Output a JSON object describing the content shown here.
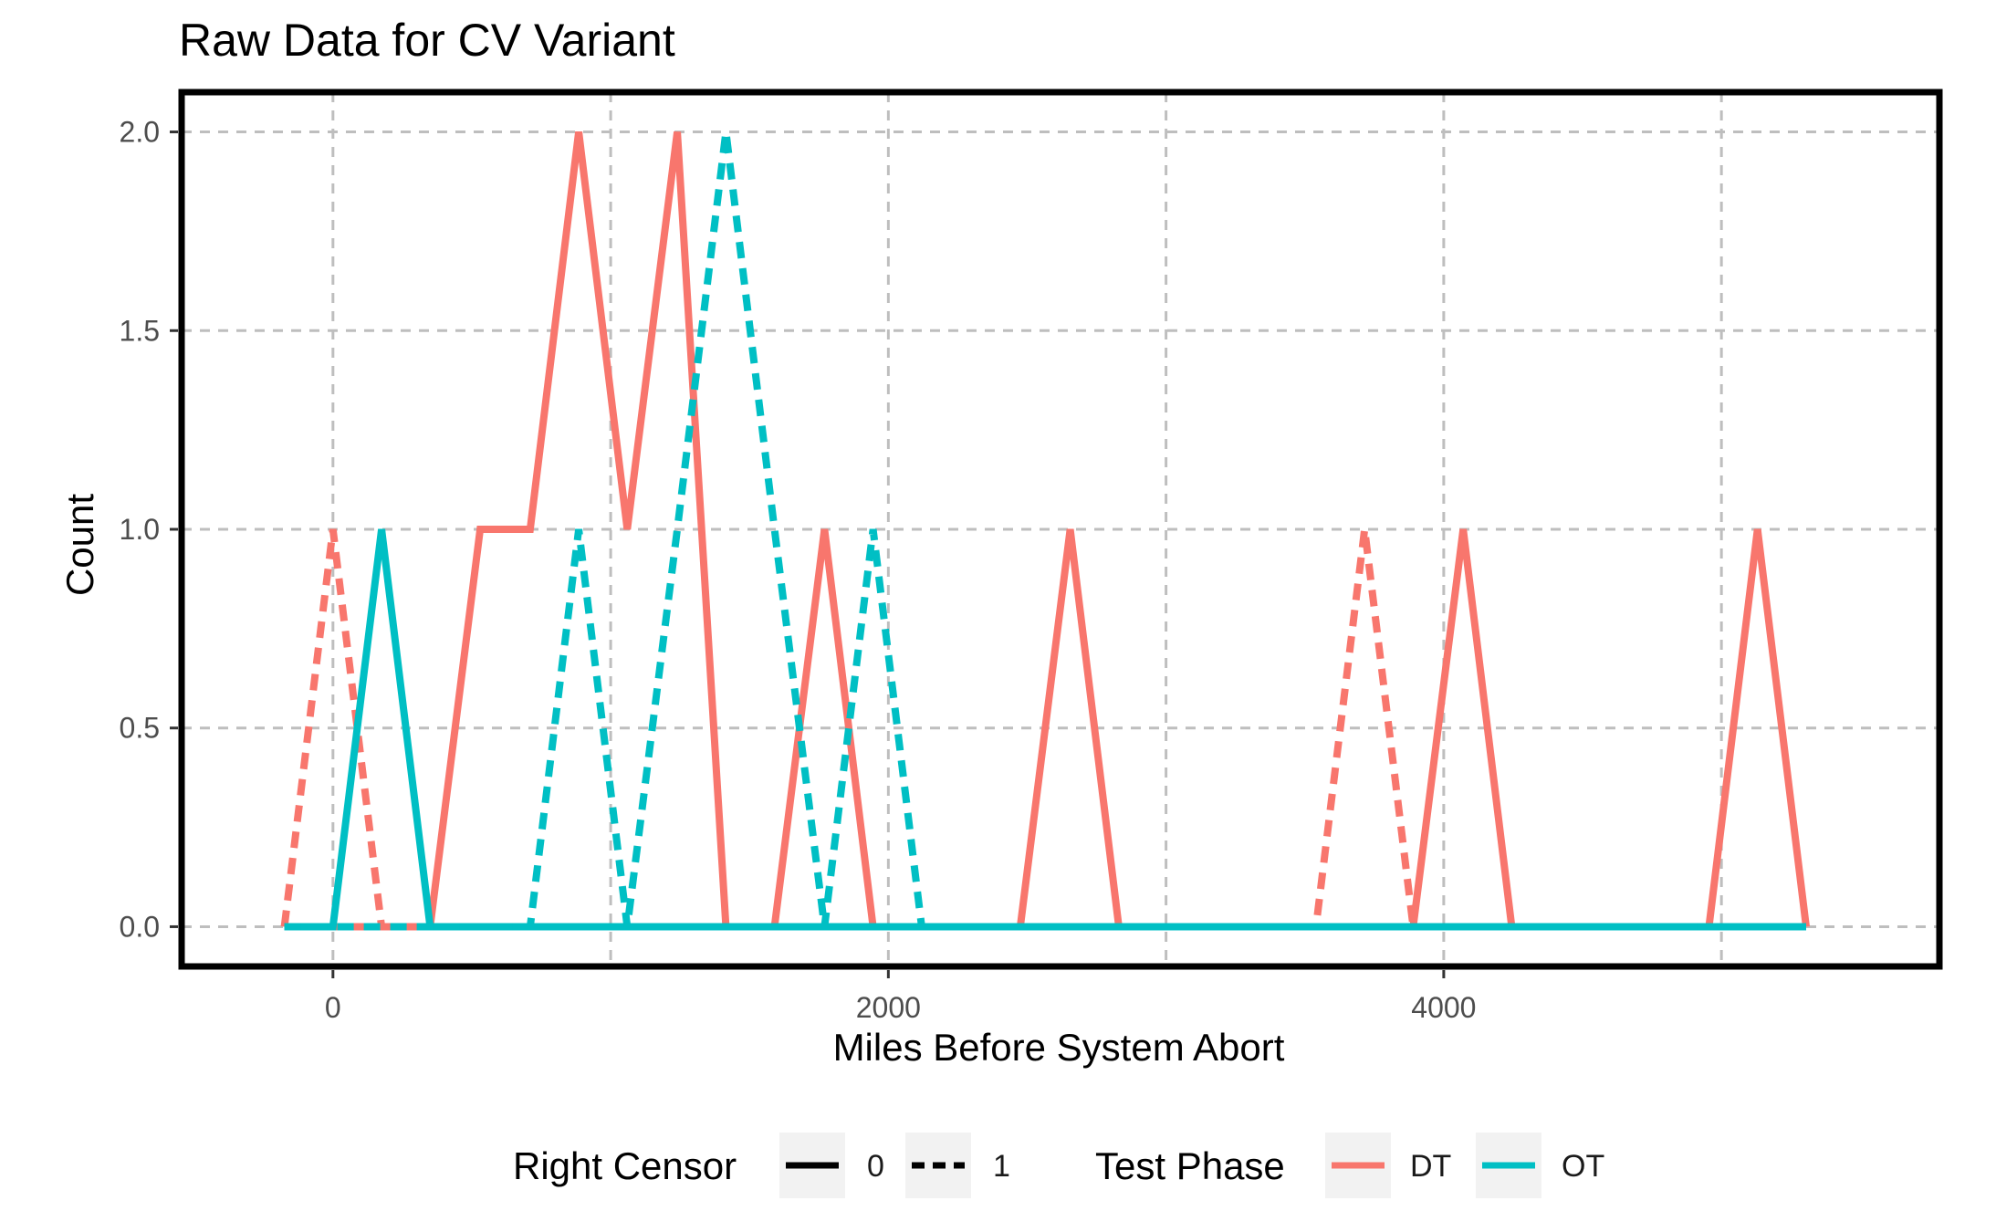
{
  "chart_data": {
    "type": "line",
    "title": "Raw Data for CV Variant",
    "xlabel": "Miles Before System Abort",
    "ylabel": "Count",
    "xlim": [
      -545,
      5785
    ],
    "ylim": [
      -0.1,
      2.1
    ],
    "x_ticks": [
      0,
      2000,
      4000
    ],
    "x_tick_labels": [
      "0",
      "2000",
      "4000"
    ],
    "y_ticks": [
      0,
      0.5,
      1,
      1.5,
      2
    ],
    "y_tick_labels": [
      "0.0",
      "0.5",
      "1.0",
      "1.5",
      "2.0"
    ],
    "grid": true,
    "legend_position": "bottom",
    "legend": {
      "linetype_title": "Right Censor",
      "linetype_items": [
        {
          "label": "0",
          "linetype": "solid"
        },
        {
          "label": "1",
          "linetype": "dashed"
        }
      ],
      "color_title": "Test Phase",
      "color_items": [
        {
          "label": "DT",
          "color": "#F8766D"
        },
        {
          "label": "OT",
          "color": "#00BFC4"
        }
      ]
    },
    "series": [
      {
        "phase": "DT",
        "censor": "0",
        "color": "#F8766D",
        "linetype": "solid",
        "points": [
          [
            -175,
            0
          ],
          [
            0,
            0
          ],
          [
            175,
            0
          ],
          [
            350,
            0
          ],
          [
            530,
            1
          ],
          [
            710,
            1
          ],
          [
            885,
            2
          ],
          [
            1060,
            1
          ],
          [
            1240,
            2
          ],
          [
            1415,
            0
          ],
          [
            1590,
            0
          ],
          [
            1770,
            1
          ],
          [
            1945,
            0
          ],
          [
            2120,
            0
          ],
          [
            2300,
            0
          ],
          [
            2475,
            0
          ],
          [
            2655,
            1
          ],
          [
            2830,
            0
          ],
          [
            3010,
            0
          ],
          [
            3185,
            0
          ],
          [
            3360,
            0
          ],
          [
            3540,
            0
          ],
          [
            3715,
            0
          ],
          [
            3890,
            0
          ],
          [
            4070,
            1
          ],
          [
            4245,
            0
          ],
          [
            4420,
            0
          ],
          [
            4600,
            0
          ],
          [
            4775,
            0
          ],
          [
            4955,
            0
          ],
          [
            5130,
            1
          ],
          [
            5305,
            0
          ]
        ]
      },
      {
        "phase": "DT",
        "censor": "1",
        "color": "#F8766D",
        "linetype": "dashed",
        "points": [
          [
            -175,
            0
          ],
          [
            0,
            1
          ],
          [
            175,
            0
          ],
          [
            350,
            0
          ],
          [
            530,
            0
          ],
          [
            710,
            0
          ],
          [
            885,
            0
          ],
          [
            1060,
            0
          ],
          [
            1240,
            0
          ],
          [
            1415,
            0
          ],
          [
            1590,
            0
          ],
          [
            1770,
            0
          ],
          [
            1945,
            0
          ],
          [
            2120,
            0
          ],
          [
            2300,
            0
          ],
          [
            2475,
            0
          ],
          [
            2655,
            0
          ],
          [
            2830,
            0
          ],
          [
            3010,
            0
          ],
          [
            3185,
            0
          ],
          [
            3360,
            0
          ],
          [
            3540,
            0
          ],
          [
            3715,
            1
          ],
          [
            3890,
            0
          ],
          [
            4070,
            0
          ],
          [
            4245,
            0
          ],
          [
            4420,
            0
          ],
          [
            4600,
            0
          ],
          [
            4775,
            0
          ],
          [
            4955,
            0
          ],
          [
            5130,
            0
          ],
          [
            5305,
            0
          ]
        ]
      },
      {
        "phase": "OT",
        "censor": "0",
        "color": "#00BFC4",
        "linetype": "solid",
        "points": [
          [
            -175,
            0
          ],
          [
            0,
            0
          ],
          [
            175,
            1
          ],
          [
            350,
            0
          ],
          [
            530,
            0
          ],
          [
            710,
            0
          ],
          [
            885,
            0
          ],
          [
            1060,
            0
          ],
          [
            1240,
            0
          ],
          [
            1415,
            0
          ],
          [
            1590,
            0
          ],
          [
            1770,
            0
          ],
          [
            1945,
            0
          ],
          [
            2120,
            0
          ],
          [
            2300,
            0
          ],
          [
            2475,
            0
          ],
          [
            2655,
            0
          ],
          [
            2830,
            0
          ],
          [
            3010,
            0
          ],
          [
            3185,
            0
          ],
          [
            3360,
            0
          ],
          [
            3540,
            0
          ],
          [
            3715,
            0
          ],
          [
            3890,
            0
          ],
          [
            4070,
            0
          ],
          [
            4245,
            0
          ],
          [
            4420,
            0
          ],
          [
            4600,
            0
          ],
          [
            4775,
            0
          ],
          [
            4955,
            0
          ],
          [
            5130,
            0
          ],
          [
            5305,
            0
          ]
        ]
      },
      {
        "phase": "OT",
        "censor": "1",
        "color": "#00BFC4",
        "linetype": "dashed",
        "points": [
          [
            -175,
            0
          ],
          [
            0,
            0
          ],
          [
            175,
            0
          ],
          [
            350,
            0
          ],
          [
            530,
            0
          ],
          [
            710,
            0
          ],
          [
            885,
            1
          ],
          [
            1060,
            0
          ],
          [
            1240,
            1
          ],
          [
            1415,
            2
          ],
          [
            1590,
            1
          ],
          [
            1770,
            0
          ],
          [
            1945,
            1
          ],
          [
            2120,
            0
          ],
          [
            2300,
            0
          ],
          [
            2475,
            0
          ],
          [
            2655,
            0
          ],
          [
            2830,
            0
          ],
          [
            3010,
            0
          ],
          [
            3185,
            0
          ],
          [
            3360,
            0
          ],
          [
            3540,
            0
          ],
          [
            3715,
            0
          ],
          [
            3890,
            0
          ],
          [
            4070,
            0
          ],
          [
            4245,
            0
          ],
          [
            4420,
            0
          ],
          [
            4600,
            0
          ],
          [
            4775,
            0
          ],
          [
            4955,
            0
          ],
          [
            5130,
            0
          ],
          [
            5305,
            0
          ]
        ]
      }
    ]
  }
}
